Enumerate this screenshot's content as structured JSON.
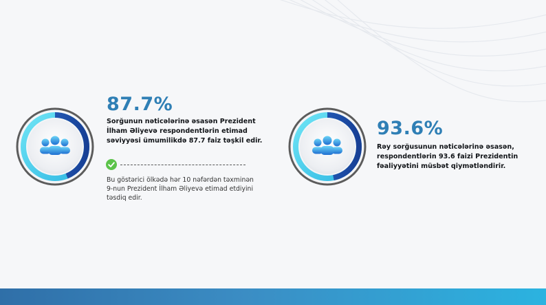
{
  "stats": [
    {
      "value": "87.7%",
      "description": "Sorğunun nəticələrinə əsasən Prezident İlham Əliyevə respondentlərin etimad səviyyəsi ümumilikdə 87.7 faiz təşkil edir.",
      "note": "Bu göstərici ölkədə hər 10 nəfərdən təxminən 9-nun Prezident İlham Əliyevə etimad etdiyini təsdiq edir.",
      "progress": 0.877,
      "icon": "people-group-icon"
    },
    {
      "value": "93.6%",
      "description": "Rəy sorğusunun nəticələrinə əsasən, respondentlərin 93.6 faizi Prezidentin fəaliyyətini müsbət qiymətləndirir.",
      "progress": 0.936,
      "icon": "people-group-icon"
    }
  ],
  "colors": {
    "accent": "#2f7fb5",
    "ring_dark": "#1d56ae",
    "ring_light": "#59d6ee",
    "ring_border": "#5c5c5c",
    "check": "#5cc34a",
    "bottom_bar_start": "#2f6fa8",
    "bottom_bar_end": "#2bb3e0"
  }
}
